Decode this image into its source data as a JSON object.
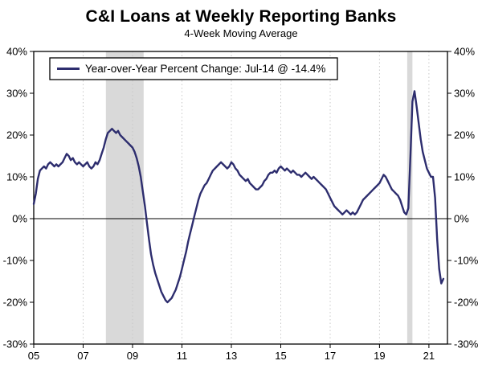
{
  "title": "C&I Loans at Weekly Reporting Banks",
  "subtitle": "4-Week Moving Average",
  "legend": {
    "label": "Year-over-Year Percent Change: Jul-14 @ -14.4%"
  },
  "colors": {
    "line": "#2d2d6e",
    "recession": "#d9d9d9",
    "grid": "#c8c8c8",
    "axis": "#000000",
    "background": "#ffffff"
  },
  "chart_data": {
    "type": "line",
    "title": "C&I Loans at Weekly Reporting Banks",
    "subtitle": "4-Week Moving Average",
    "ylabel": "Year-over-Year Percent Change",
    "ylim": [
      -30,
      40
    ],
    "yticks": [
      40,
      30,
      20,
      10,
      0,
      -10,
      -20,
      -30
    ],
    "ytick_labels": [
      "40%",
      "30%",
      "20%",
      "10%",
      "0%",
      "-10%",
      "-20%",
      "-30%"
    ],
    "xlim": [
      2005,
      2021.75
    ],
    "xticks": [
      2005,
      2007,
      2009,
      2011,
      2013,
      2015,
      2017,
      2019,
      2021
    ],
    "xtick_labels": [
      "05",
      "07",
      "09",
      "11",
      "13",
      "15",
      "17",
      "19",
      "21"
    ],
    "grid": "vertical-dotted",
    "legend_position": "top-left-inside",
    "zero_line": true,
    "recessions": [
      [
        2007.92,
        2009.45
      ],
      [
        2020.12,
        2020.33
      ]
    ],
    "last_point": {
      "date": "Jul-14",
      "value": -14.4
    },
    "series": [
      {
        "name": "Year-over-Year Percent Change",
        "x_unit": "decimal_year",
        "x_start": 2005.0,
        "x_step": 0.08333,
        "y": [
          3.5,
          6,
          9.5,
          11.5,
          12,
          12.5,
          12,
          13,
          13.5,
          13,
          12.5,
          13,
          12.5,
          13,
          13.5,
          14.5,
          15.5,
          15,
          14,
          14.5,
          13.5,
          13,
          13.5,
          13,
          12.5,
          13,
          13.5,
          12.5,
          12,
          12.5,
          13.5,
          13,
          14,
          15.5,
          17,
          19,
          20.5,
          21,
          21.5,
          21,
          20.5,
          21,
          20,
          19.5,
          19,
          18.5,
          18,
          17.5,
          17,
          16,
          14.5,
          12.5,
          10,
          6.5,
          3,
          -1,
          -5,
          -8.5,
          -11,
          -13,
          -14.5,
          -16,
          -17.5,
          -18.5,
          -19.5,
          -20,
          -19.5,
          -19,
          -18,
          -17,
          -15.5,
          -14,
          -12,
          -10,
          -8,
          -5.5,
          -3.5,
          -1.5,
          0.5,
          2.5,
          4.5,
          6,
          7,
          8,
          8.5,
          9.5,
          10.5,
          11.5,
          12,
          12.5,
          13,
          13.5,
          13,
          12.5,
          12,
          12.5,
          13.5,
          13,
          12,
          11.5,
          10.5,
          10,
          9.5,
          9,
          9.5,
          8.5,
          8,
          7.5,
          7,
          7,
          7.5,
          8,
          9,
          9.5,
          10.5,
          11,
          11,
          11.5,
          11,
          12,
          12.5,
          12,
          11.5,
          12,
          11.5,
          11,
          11.5,
          11,
          10.5,
          10.5,
          10,
          10.5,
          11,
          10.5,
          10,
          9.5,
          10,
          9.5,
          9,
          8.5,
          8,
          7.5,
          7,
          6,
          5,
          4,
          3,
          2.5,
          2,
          1.5,
          1,
          1.5,
          2,
          1.5,
          1,
          1.5,
          1,
          1.5,
          2.5,
          3.5,
          4.5,
          5,
          5.5,
          6,
          6.5,
          7,
          7.5,
          8,
          8.5,
          9.5,
          10.5,
          10,
          9,
          8,
          7,
          6.5,
          6,
          5.5,
          4.5,
          3,
          1.5,
          1,
          2.5,
          15,
          28,
          30.5,
          27,
          23,
          19,
          16,
          14,
          12,
          11,
          10,
          10,
          5,
          -5,
          -12,
          -15.5,
          -14.4
        ]
      }
    ]
  }
}
